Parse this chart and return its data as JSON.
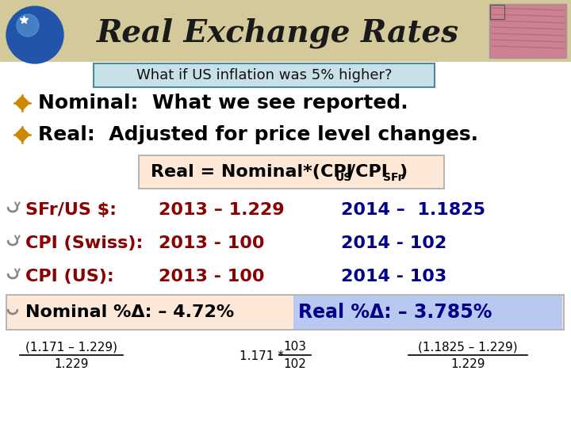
{
  "title": "Real Exchange Rates",
  "subtitle": "What if US inflation was 5% higher?",
  "bg_color": "#ffffff",
  "header_bg": "#d4c99a",
  "title_color": "#1a1a1a",
  "bullet_color": "#cc8800",
  "bullet1": "Nominal:  What we see reported.",
  "bullet2": "Real:  Adjusted for price level changes.",
  "formula_box_color": "#fde8d8",
  "dark_red": "#8b0000",
  "dark_blue": "#00008b",
  "row1_label": "SFr/US $:",
  "row1_2013": "2013 – 1.229",
  "row1_2014": "2014 –  1.1825",
  "row2_label": "CPI (Swiss):",
  "row2_2013": "2013 - 100",
  "row2_2014": "2014 - 102",
  "row3_label": "CPI (US):",
  "row3_2013": "2013 - 100",
  "row3_2014": "2014 - 103",
  "bottom_box_color": "#fde8d8",
  "bottom_box_blue_color": "#b8c8f0",
  "formula1_num": "(1.171 – 1.229)",
  "formula1_den": "1.229",
  "formula2_pre": "1.171 * ",
  "formula2_num": "103",
  "formula2_den": "102",
  "formula3_num": "(1.1825 – 1.229)",
  "formula3_den": "1.229",
  "subtitle_box_color": "#c8e0e8",
  "subtitle_box_border": "#4a8a9a",
  "gray_bullet": "#888888"
}
